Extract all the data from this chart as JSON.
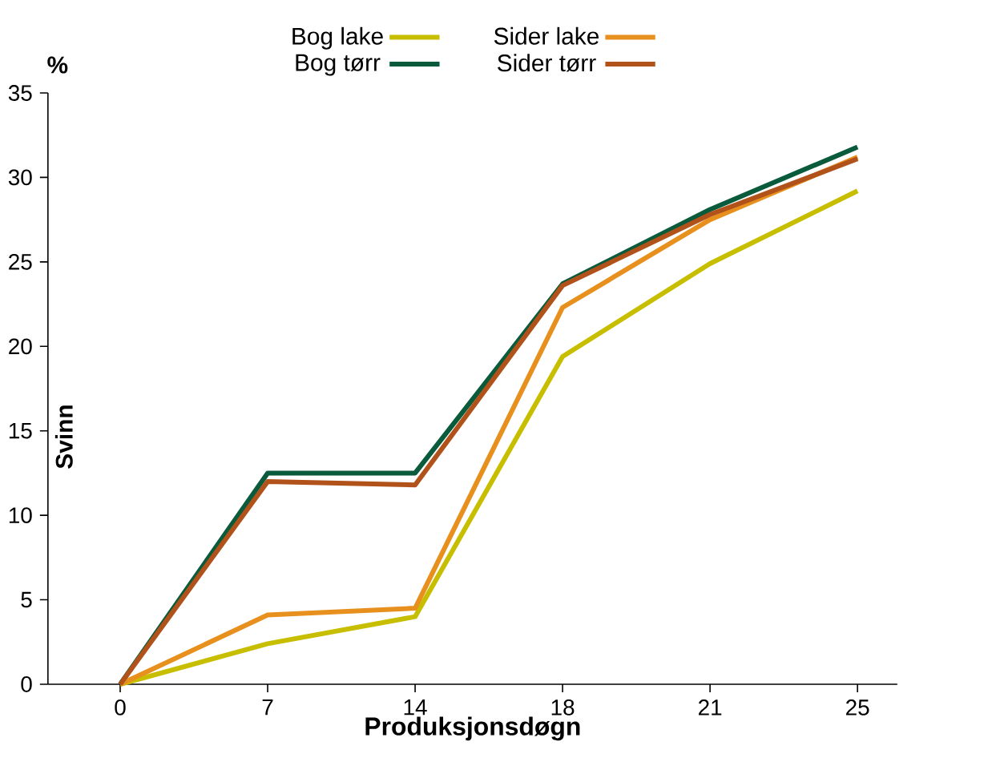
{
  "chart_data": {
    "type": "line",
    "xlabel": "Produksjonsdøgn",
    "ylabel": "Svinn",
    "annotations": [
      "%"
    ],
    "categories": [
      "0",
      "7",
      "14",
      "18",
      "21",
      "25"
    ],
    "ylim": [
      0,
      35
    ],
    "yticks": [
      0,
      5,
      10,
      15,
      20,
      25,
      30,
      35
    ],
    "legend": "top",
    "grid": false,
    "marker": "none",
    "line_style": "solid",
    "series": [
      {
        "name": "Bog lake",
        "color": "#c8be00",
        "values": [
          0,
          2.4,
          4.0,
          19.4,
          24.9,
          29.2
        ]
      },
      {
        "name": "Bog tørr",
        "color": "#0a5a3c",
        "values": [
          0,
          12.5,
          12.5,
          23.7,
          28.1,
          31.8
        ]
      },
      {
        "name": "Sider lake",
        "color": "#e8901e",
        "values": [
          0,
          4.1,
          4.5,
          22.3,
          27.5,
          31.2
        ]
      },
      {
        "name": "Sider tørr",
        "color": "#b0521a",
        "values": [
          0,
          12.0,
          11.8,
          23.6,
          27.8,
          31.1
        ]
      }
    ]
  }
}
